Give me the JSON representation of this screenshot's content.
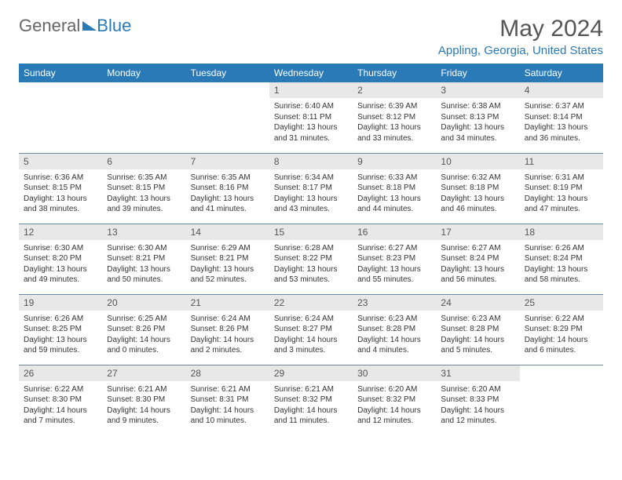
{
  "brand": {
    "part1": "General",
    "part2": "Blue"
  },
  "title": "May 2024",
  "location": "Appling, Georgia, United States",
  "colors": {
    "header_bg": "#2a7ab8",
    "header_text": "#ffffff",
    "daynum_bg": "#e8e8e8",
    "border": "#6a8aa8",
    "title_color": "#555555",
    "location_color": "#2a7ab8"
  },
  "dayHeaders": [
    "Sunday",
    "Monday",
    "Tuesday",
    "Wednesday",
    "Thursday",
    "Friday",
    "Saturday"
  ],
  "weeks": [
    [
      null,
      null,
      null,
      {
        "n": "1",
        "sr": "6:40 AM",
        "ss": "8:11 PM",
        "dl": "13 hours and 31 minutes."
      },
      {
        "n": "2",
        "sr": "6:39 AM",
        "ss": "8:12 PM",
        "dl": "13 hours and 33 minutes."
      },
      {
        "n": "3",
        "sr": "6:38 AM",
        "ss": "8:13 PM",
        "dl": "13 hours and 34 minutes."
      },
      {
        "n": "4",
        "sr": "6:37 AM",
        "ss": "8:14 PM",
        "dl": "13 hours and 36 minutes."
      }
    ],
    [
      {
        "n": "5",
        "sr": "6:36 AM",
        "ss": "8:15 PM",
        "dl": "13 hours and 38 minutes."
      },
      {
        "n": "6",
        "sr": "6:35 AM",
        "ss": "8:15 PM",
        "dl": "13 hours and 39 minutes."
      },
      {
        "n": "7",
        "sr": "6:35 AM",
        "ss": "8:16 PM",
        "dl": "13 hours and 41 minutes."
      },
      {
        "n": "8",
        "sr": "6:34 AM",
        "ss": "8:17 PM",
        "dl": "13 hours and 43 minutes."
      },
      {
        "n": "9",
        "sr": "6:33 AM",
        "ss": "8:18 PM",
        "dl": "13 hours and 44 minutes."
      },
      {
        "n": "10",
        "sr": "6:32 AM",
        "ss": "8:18 PM",
        "dl": "13 hours and 46 minutes."
      },
      {
        "n": "11",
        "sr": "6:31 AM",
        "ss": "8:19 PM",
        "dl": "13 hours and 47 minutes."
      }
    ],
    [
      {
        "n": "12",
        "sr": "6:30 AM",
        "ss": "8:20 PM",
        "dl": "13 hours and 49 minutes."
      },
      {
        "n": "13",
        "sr": "6:30 AM",
        "ss": "8:21 PM",
        "dl": "13 hours and 50 minutes."
      },
      {
        "n": "14",
        "sr": "6:29 AM",
        "ss": "8:21 PM",
        "dl": "13 hours and 52 minutes."
      },
      {
        "n": "15",
        "sr": "6:28 AM",
        "ss": "8:22 PM",
        "dl": "13 hours and 53 minutes."
      },
      {
        "n": "16",
        "sr": "6:27 AM",
        "ss": "8:23 PM",
        "dl": "13 hours and 55 minutes."
      },
      {
        "n": "17",
        "sr": "6:27 AM",
        "ss": "8:24 PM",
        "dl": "13 hours and 56 minutes."
      },
      {
        "n": "18",
        "sr": "6:26 AM",
        "ss": "8:24 PM",
        "dl": "13 hours and 58 minutes."
      }
    ],
    [
      {
        "n": "19",
        "sr": "6:26 AM",
        "ss": "8:25 PM",
        "dl": "13 hours and 59 minutes."
      },
      {
        "n": "20",
        "sr": "6:25 AM",
        "ss": "8:26 PM",
        "dl": "14 hours and 0 minutes."
      },
      {
        "n": "21",
        "sr": "6:24 AM",
        "ss": "8:26 PM",
        "dl": "14 hours and 2 minutes."
      },
      {
        "n": "22",
        "sr": "6:24 AM",
        "ss": "8:27 PM",
        "dl": "14 hours and 3 minutes."
      },
      {
        "n": "23",
        "sr": "6:23 AM",
        "ss": "8:28 PM",
        "dl": "14 hours and 4 minutes."
      },
      {
        "n": "24",
        "sr": "6:23 AM",
        "ss": "8:28 PM",
        "dl": "14 hours and 5 minutes."
      },
      {
        "n": "25",
        "sr": "6:22 AM",
        "ss": "8:29 PM",
        "dl": "14 hours and 6 minutes."
      }
    ],
    [
      {
        "n": "26",
        "sr": "6:22 AM",
        "ss": "8:30 PM",
        "dl": "14 hours and 7 minutes."
      },
      {
        "n": "27",
        "sr": "6:21 AM",
        "ss": "8:30 PM",
        "dl": "14 hours and 9 minutes."
      },
      {
        "n": "28",
        "sr": "6:21 AM",
        "ss": "8:31 PM",
        "dl": "14 hours and 10 minutes."
      },
      {
        "n": "29",
        "sr": "6:21 AM",
        "ss": "8:32 PM",
        "dl": "14 hours and 11 minutes."
      },
      {
        "n": "30",
        "sr": "6:20 AM",
        "ss": "8:32 PM",
        "dl": "14 hours and 12 minutes."
      },
      {
        "n": "31",
        "sr": "6:20 AM",
        "ss": "8:33 PM",
        "dl": "14 hours and 12 minutes."
      },
      null
    ]
  ],
  "labels": {
    "sunrise": "Sunrise:",
    "sunset": "Sunset:",
    "daylight": "Daylight:"
  }
}
